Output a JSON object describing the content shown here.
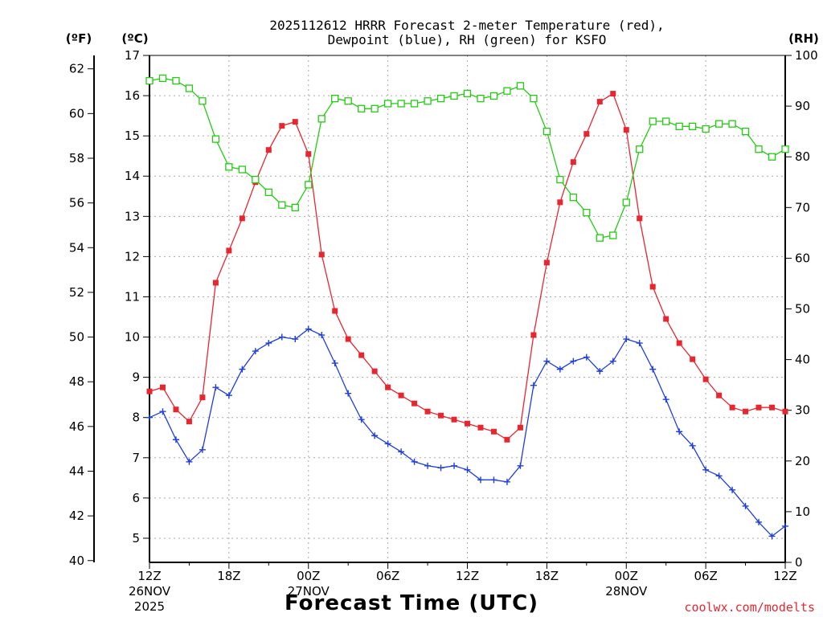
{
  "chart_data": {
    "type": "line",
    "title_line1": "2025112612 HRRR Forecast 2-meter Temperature (red),",
    "title_line2": "Dewpoint (blue), RH (green) for KSFO",
    "xlabel": "Forecast Time (UTC)",
    "credit": "coolwx.com/modelts",
    "unit_f": "(ºF)",
    "unit_c": "(ºC)",
    "unit_rh": "(RH)",
    "x_hours_range": [
      0,
      48
    ],
    "ylim_c": [
      4.4,
      17
    ],
    "ylim_rh": [
      0,
      100
    ],
    "c_ticks": [
      "5",
      "6",
      "7",
      "8",
      "9",
      "10",
      "11",
      "12",
      "13",
      "14",
      "15",
      "16",
      "17"
    ],
    "f_ticks": [
      "40",
      "42",
      "44",
      "46",
      "48",
      "50",
      "52",
      "54",
      "56",
      "58",
      "60",
      "62"
    ],
    "rh_ticks": [
      "0",
      "10",
      "20",
      "30",
      "40",
      "50",
      "60",
      "70",
      "80",
      "90",
      "100"
    ],
    "x_ticks": [
      {
        "hour": 0,
        "label": "12Z",
        "sub1": "26NOV",
        "sub2": "2025"
      },
      {
        "hour": 6,
        "label": "18Z",
        "sub1": "",
        "sub2": ""
      },
      {
        "hour": 12,
        "label": "00Z",
        "sub1": "27NOV",
        "sub2": ""
      },
      {
        "hour": 18,
        "label": "06Z",
        "sub1": "",
        "sub2": ""
      },
      {
        "hour": 24,
        "label": "12Z",
        "sub1": "",
        "sub2": ""
      },
      {
        "hour": 30,
        "label": "18Z",
        "sub1": "",
        "sub2": ""
      },
      {
        "hour": 36,
        "label": "00Z",
        "sub1": "28NOV",
        "sub2": ""
      },
      {
        "hour": 42,
        "label": "06Z",
        "sub1": "",
        "sub2": ""
      },
      {
        "hour": 48,
        "label": "12Z",
        "sub1": "",
        "sub2": ""
      }
    ],
    "colors": {
      "temperature": "#e8262f",
      "dewpoint": "#1f3ee0",
      "rh": "#22cc11",
      "credit": "#e8262f"
    },
    "series": [
      {
        "name": "Temperature",
        "axis": "c",
        "marker": "filled-square",
        "x": [
          0,
          1,
          2,
          3,
          4,
          5,
          6,
          7,
          8,
          9,
          10,
          11,
          12,
          13,
          14,
          15,
          16,
          17,
          18,
          19,
          20,
          21,
          22,
          23,
          24,
          25,
          26,
          27,
          28,
          29,
          30,
          31,
          32,
          33,
          34,
          35,
          36,
          37,
          38,
          39,
          40,
          41,
          42,
          43,
          44,
          45,
          46,
          47,
          48
        ],
        "values": [
          8.65,
          8.75,
          8.2,
          7.9,
          8.5,
          11.35,
          12.15,
          12.95,
          13.85,
          14.65,
          15.25,
          15.35,
          14.55,
          12.05,
          10.65,
          9.95,
          9.55,
          9.15,
          8.75,
          8.55,
          8.35,
          8.15,
          8.05,
          7.95,
          7.85,
          7.75,
          7.65,
          7.45,
          7.75,
          10.05,
          11.85,
          13.35,
          14.35,
          15.05,
          15.85,
          16.05,
          15.15,
          12.95,
          11.25,
          10.45,
          9.85,
          9.45,
          8.95,
          8.55,
          8.25,
          8.15,
          8.25,
          8.25,
          8.15
        ]
      },
      {
        "name": "Dewpoint",
        "axis": "c",
        "marker": "plus",
        "x": [
          0,
          1,
          2,
          3,
          4,
          5,
          6,
          7,
          8,
          9,
          10,
          11,
          12,
          13,
          14,
          15,
          16,
          17,
          18,
          19,
          20,
          21,
          22,
          23,
          24,
          25,
          26,
          27,
          28,
          29,
          30,
          31,
          32,
          33,
          34,
          35,
          36,
          37,
          38,
          39,
          40,
          41,
          42,
          43,
          44,
          45,
          46,
          47,
          48
        ],
        "values": [
          8.0,
          8.15,
          7.45,
          6.9,
          7.2,
          8.75,
          8.55,
          9.2,
          9.65,
          9.85,
          10.0,
          9.95,
          10.2,
          10.05,
          9.35,
          8.6,
          7.95,
          7.55,
          7.35,
          7.15,
          6.9,
          6.8,
          6.75,
          6.8,
          6.7,
          6.45,
          6.45,
          6.4,
          6.8,
          8.8,
          9.4,
          9.2,
          9.4,
          9.5,
          9.15,
          9.4,
          9.95,
          9.85,
          9.2,
          8.45,
          7.65,
          7.3,
          6.7,
          6.55,
          6.2,
          5.8,
          5.4,
          5.05,
          5.3
        ]
      },
      {
        "name": "RH",
        "axis": "rh",
        "marker": "open-square",
        "x": [
          0,
          1,
          2,
          3,
          4,
          5,
          6,
          7,
          8,
          9,
          10,
          11,
          12,
          13,
          14,
          15,
          16,
          17,
          18,
          19,
          20,
          21,
          22,
          23,
          24,
          25,
          26,
          27,
          28,
          29,
          30,
          31,
          32,
          33,
          34,
          35,
          36,
          37,
          38,
          39,
          40,
          41,
          42,
          43,
          44,
          45,
          46,
          47,
          48
        ],
        "values": [
          95,
          95.5,
          95,
          93.5,
          91,
          83.5,
          78,
          77.5,
          75.5,
          73,
          70.5,
          70,
          74.5,
          87.5,
          91.5,
          91,
          89.5,
          89.5,
          90.5,
          90.5,
          90.5,
          91,
          91.5,
          92,
          92.5,
          91.5,
          92,
          93,
          94,
          91.5,
          85,
          75.5,
          72,
          69,
          64,
          64.5,
          71,
          81.5,
          87,
          87,
          86,
          86,
          85.5,
          86.5,
          86.5,
          85,
          81.5,
          80,
          81.5
        ]
      }
    ]
  }
}
